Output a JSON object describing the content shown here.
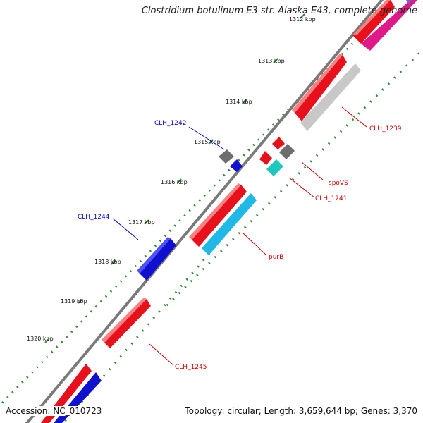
{
  "title": "Clostridium botulinum E3 str. Alaska E43, complete genome",
  "accession": "Accession: NC_010723",
  "summary": "Topology: circular; Length: 3,659,644 bp; Genes: 3,370",
  "colors": {
    "backbone": "#7a7a7a",
    "tick_dots": "#2e8b2e",
    "forward_red": "#e8101a",
    "grey_gene": "#6e6e6e",
    "light_grey_gene": "#c8c8c8",
    "pink_gene": "#e0198a",
    "cyan_gene": "#20b8e8",
    "teal_gene": "#1ec8c0",
    "blue_gene": "#1010d0",
    "label_red": "#cc0000",
    "label_blue": "#0000cc"
  },
  "scale_labels": [
    "1312 kbp",
    "1313 kbp",
    "1314 kbp",
    "1315 kbp",
    "1316 kbp",
    "1317 kbp",
    "1318 kbp",
    "1319 kbp",
    "1320 kbp"
  ],
  "gene_labels": [
    {
      "text": "CLH_1239",
      "color": "red"
    },
    {
      "text": "CLH_1242",
      "color": "blue"
    },
    {
      "text": "spoVS",
      "color": "red"
    },
    {
      "text": "CLH_1241",
      "color": "red"
    },
    {
      "text": "CLH_1244",
      "color": "blue"
    },
    {
      "text": "purB",
      "color": "red"
    },
    {
      "text": "CLH_1245",
      "color": "red"
    }
  ]
}
